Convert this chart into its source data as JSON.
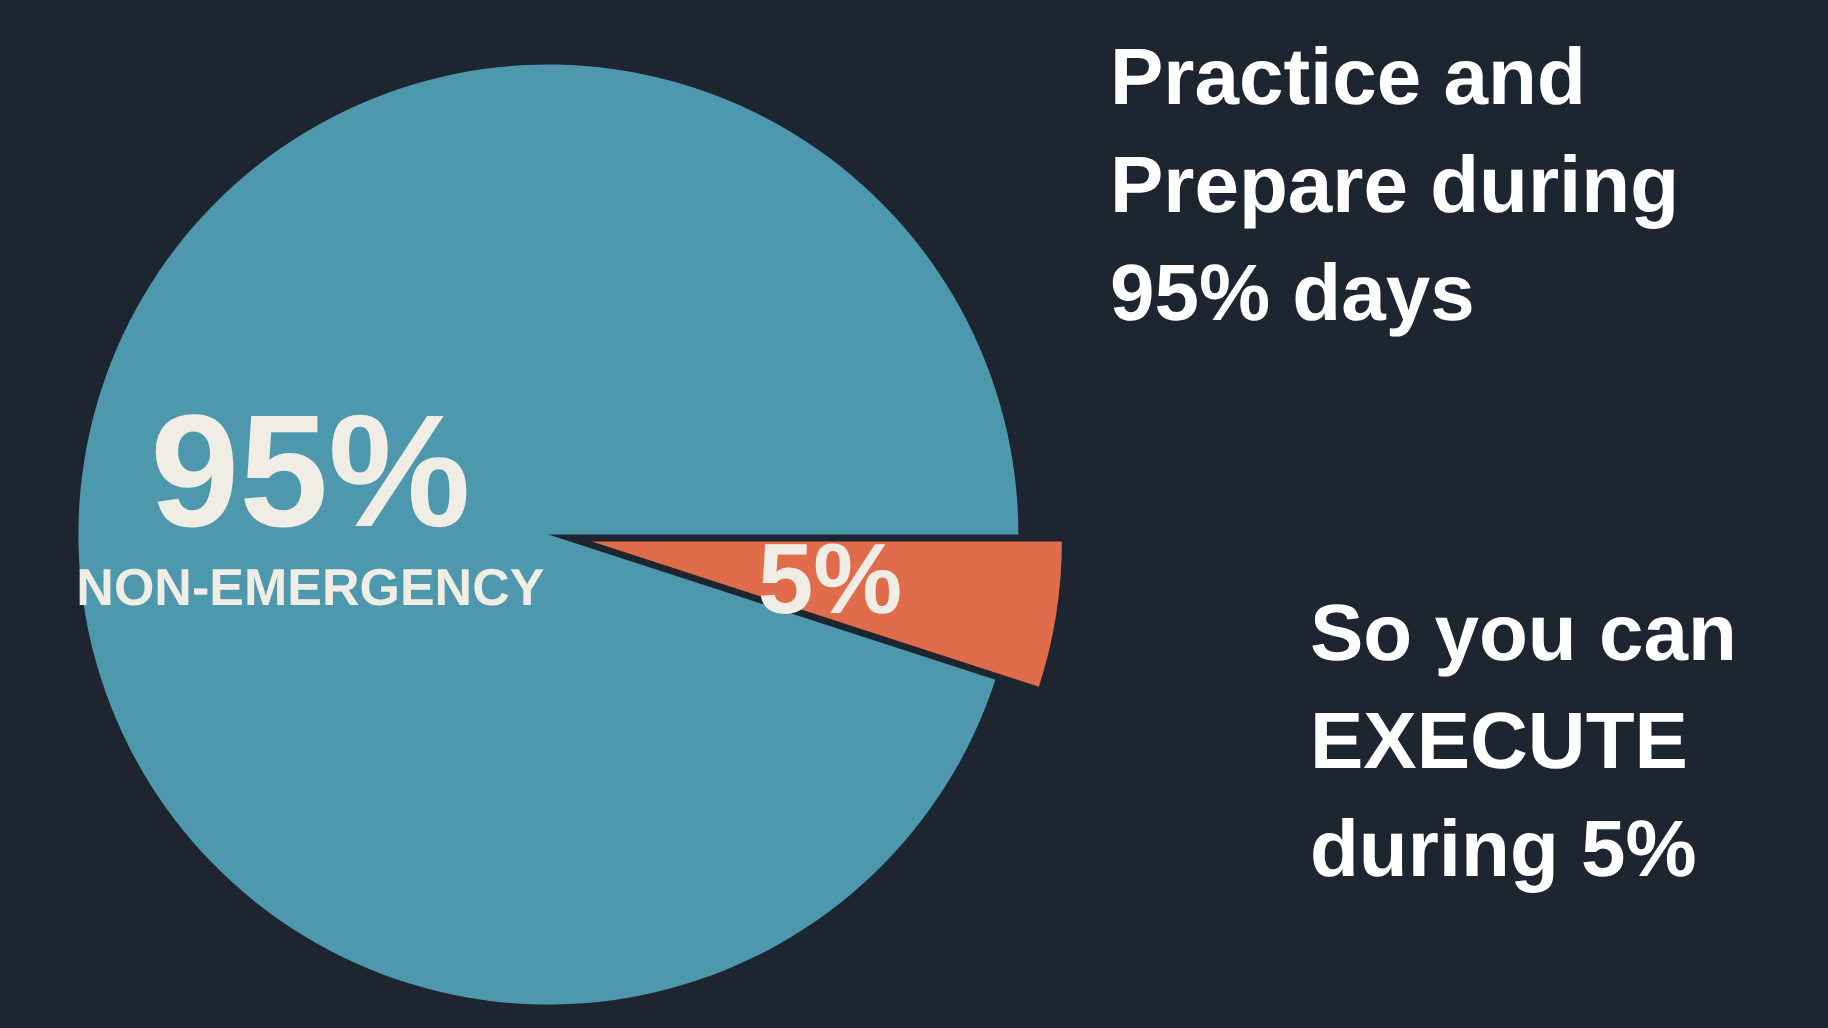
{
  "chart_data": {
    "type": "pie",
    "categories": [
      "NON-EMERGENCY",
      null
    ],
    "values": [
      95,
      5
    ],
    "colors": [
      "#4e98ad",
      "#e06c4c"
    ],
    "value_labels": [
      "95%",
      "5%"
    ],
    "annotations": [
      "Practice and Prepare during 95% days",
      "So you can EXECUTE during 5%"
    ],
    "legend": false
  }
}
